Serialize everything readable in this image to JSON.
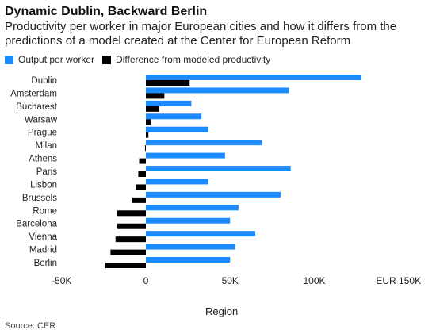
{
  "title": "Dynamic Dublin, Backward Berlin",
  "subtitle": "Productivity per worker in major European cities and how it differs from the predictions of a model created at the Center for European Reform",
  "source": "Source: CER",
  "colors": {
    "output": "#1a8cff",
    "difference": "#000000"
  },
  "chart_data": {
    "type": "bar",
    "orientation": "horizontal",
    "categories": [
      "Dublin",
      "Amsterdam",
      "Bucharest",
      "Warsaw",
      "Prague",
      "Milan",
      "Athens",
      "Paris",
      "Lisbon",
      "Brussels",
      "Rome",
      "Barcelona",
      "Vienna",
      "Madrid",
      "Berlin"
    ],
    "series": [
      {
        "name": "Output per worker",
        "values": [
          128000,
          85000,
          27000,
          33000,
          37000,
          69000,
          47000,
          86000,
          37000,
          80000,
          55000,
          50000,
          65000,
          53000,
          50000
        ]
      },
      {
        "name": "Difference from modeled productivity",
        "values": [
          26000,
          11000,
          8000,
          3000,
          1500,
          -500,
          -4000,
          -4500,
          -6000,
          -8000,
          -17000,
          -17000,
          -18000,
          -21000,
          -24000
        ]
      }
    ],
    "x_ticks": [
      "-50K",
      "0",
      "50K",
      "100K",
      "EUR 150K"
    ],
    "x_tick_values": [
      -50000,
      0,
      50000,
      100000,
      150000
    ],
    "xlim": [
      -50000,
      150000
    ],
    "xlabel": "Region",
    "ylabel": "",
    "legend_position": "top-left",
    "grid": false
  }
}
